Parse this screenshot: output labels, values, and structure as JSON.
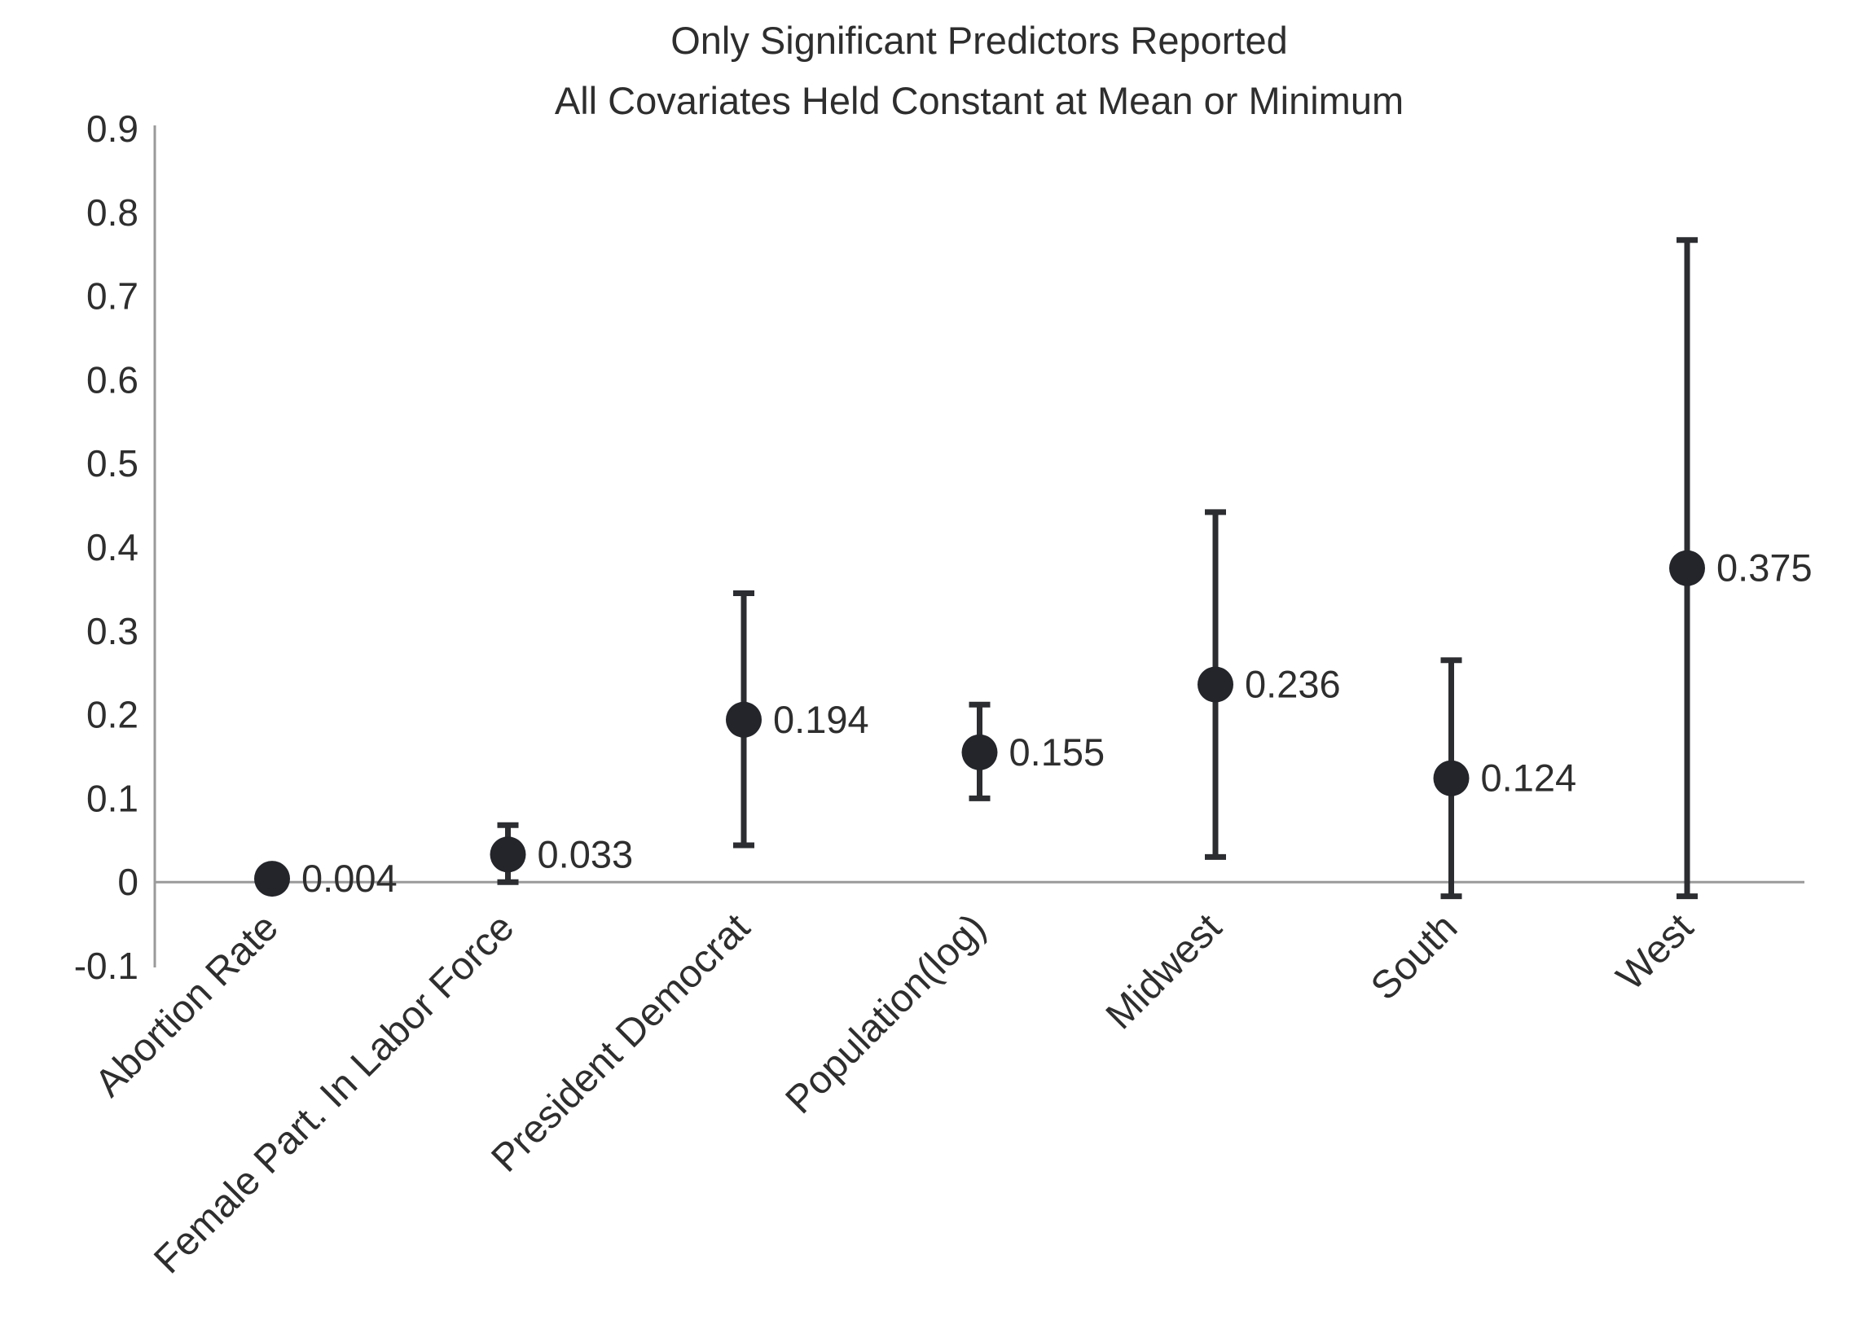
{
  "chart_data": {
    "type": "scatter",
    "title": "Only Significant Predictors Reported",
    "subtitle": "All Covariates Held Constant at Mean or Minimum",
    "xlabel": "",
    "ylabel": "",
    "ylim": [
      -0.1,
      0.9
    ],
    "yticks": [
      -0.1,
      0,
      0.1,
      0.2,
      0.3,
      0.4,
      0.5,
      0.6,
      0.7,
      0.8,
      0.9
    ],
    "ytick_labels": [
      "-0.1",
      "0",
      "0.1",
      "0.2",
      "0.3",
      "0.4",
      "0.5",
      "0.6",
      "0.7",
      "0.8",
      "0.9"
    ],
    "grid": false,
    "legend": "none",
    "marker_color": "#23252a",
    "categories": [
      "Abortion Rate",
      "Female Part. In Labor Force",
      "President Democrat",
      "Population(log)",
      "Midwest",
      "South",
      "West"
    ],
    "values": [
      0.004,
      0.033,
      0.194,
      0.155,
      0.236,
      0.124,
      0.375
    ],
    "value_labels": [
      "0.004",
      "0.033",
      "0.194",
      "0.155",
      "0.236",
      "0.124",
      "0.375"
    ],
    "error_low": [
      null,
      0.0,
      0.044,
      0.1,
      0.03,
      -0.017,
      -0.017
    ],
    "error_high": [
      null,
      0.068,
      0.345,
      0.212,
      0.442,
      0.265,
      0.767
    ]
  }
}
